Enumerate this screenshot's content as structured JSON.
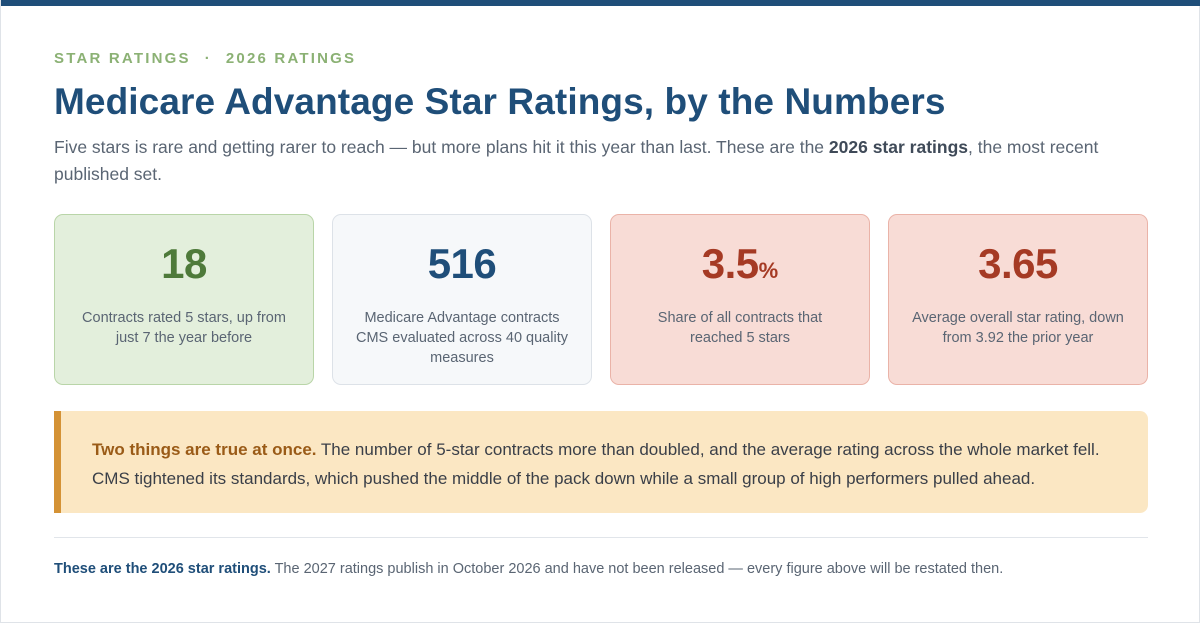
{
  "header": {
    "eyebrow_left": "STAR RATINGS",
    "eyebrow_sep": "·",
    "eyebrow_right": "2026 RATINGS",
    "title": "Medicare Advantage Star Ratings, by the Numbers",
    "lede_before": "Five stars is rare and getting rarer to reach — but more plans hit it this year than last. These are the ",
    "lede_bold": "2026 star ratings",
    "lede_after": ", the most recent published set."
  },
  "stats": [
    {
      "value": "18",
      "unit": "",
      "description": "Contracts rated 5 stars, up from just 7 the year before"
    },
    {
      "value": "516",
      "unit": "",
      "description": "Medicare Advantage contracts CMS evaluated across 40 quality measures"
    },
    {
      "value": "3.5",
      "unit": "%",
      "description": "Share of all contracts that reached 5 stars"
    },
    {
      "value": "3.65",
      "unit": "",
      "description": "Average overall star rating, down from 3.92 the prior year"
    }
  ],
  "callout": {
    "lead": "Two things are true at once.",
    "body": " The number of 5-star contracts more than doubled, and the average rating across the whole market fell. CMS tightened its standards, which pushed the middle of the pack down while a small group of high performers pulled ahead."
  },
  "footnote": {
    "strong": "These are the 2026 star ratings.",
    "body": " The 2027 ratings publish in October 2026 and have not been released — every figure above will be restated then."
  },
  "colors": {
    "brand": "#1f4e79",
    "positive": "#4e7a3a",
    "negative": "#a53a24",
    "callout_accent": "#d49235"
  }
}
